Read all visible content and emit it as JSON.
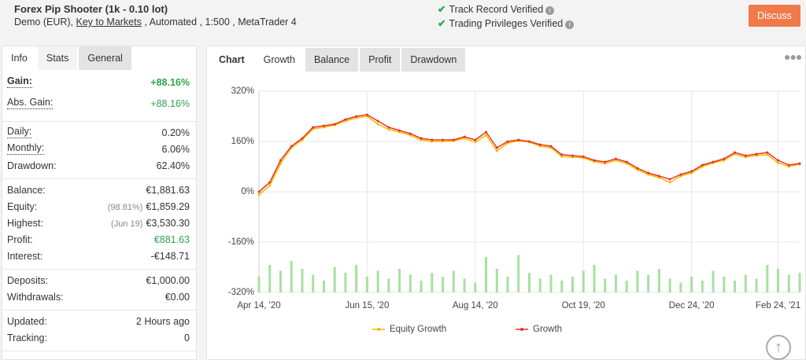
{
  "header": {
    "title": "Forex Pip Shooter (1k - 0.10 lot)",
    "account_type": "Demo (EUR),",
    "broker": "Key to Markets",
    "details": ", Automated , 1:500 , MetaTrader 4",
    "verifications": [
      "Track Record Verified",
      "Trading Privileges Verified"
    ],
    "button": "Discuss"
  },
  "stats_panel": {
    "tabs": [
      "Info",
      "Stats",
      "General"
    ],
    "groups": [
      [
        {
          "label": "Gain:",
          "value": "+88.16%",
          "color": "#2ea44f"
        },
        {
          "label": "Abs. Gain:",
          "value": "+88.16%",
          "color": "#2ea44f"
        }
      ],
      [
        {
          "label": "Daily:",
          "value": "0.20%"
        },
        {
          "label": "Monthly:",
          "value": "6.06%"
        },
        {
          "label": "Drawdown:",
          "value": "62.40%"
        }
      ],
      [
        {
          "label": "Balance:",
          "value": "€1,881.63"
        },
        {
          "label": "Equity:",
          "note": "(98.81%)",
          "value": "€1,859.29"
        },
        {
          "label": "Highest:",
          "note": "(Jun 19)",
          "value": "€3,530.30"
        },
        {
          "label": "Profit:",
          "value": "€881.63",
          "color": "#2ea44f"
        },
        {
          "label": "Interest:",
          "value": "-€148.71"
        }
      ],
      [
        {
          "label": "Deposits:",
          "value": "€1,000.00"
        },
        {
          "label": "Withdrawals:",
          "value": "€0.00"
        }
      ],
      [
        {
          "label": "Updated:",
          "value": "2 Hours ago"
        },
        {
          "label": "Tracking:",
          "value": "0"
        }
      ]
    ]
  },
  "chart_panel": {
    "label": "Chart",
    "tabs": [
      "Growth",
      "Balance",
      "Profit",
      "Drawdown"
    ]
  },
  "chart_data": {
    "type": "line",
    "categories": [
      "Apr 14, '20",
      null,
      null,
      null,
      null,
      null,
      null,
      null,
      null,
      null,
      "Jun 15, '20",
      null,
      null,
      null,
      null,
      null,
      null,
      null,
      null,
      null,
      "Aug 14, '20",
      null,
      null,
      null,
      null,
      null,
      null,
      null,
      null,
      null,
      "Oct 19, '20",
      null,
      null,
      null,
      null,
      null,
      null,
      null,
      null,
      null,
      "Dec 24, '20",
      null,
      null,
      null,
      null,
      null,
      null,
      null,
      "Feb 24, '21",
      null,
      null
    ],
    "series": [
      {
        "name": "Equity Growth",
        "color": "#f5b800",
        "values": [
          -10,
          20,
          90,
          140,
          165,
          200,
          205,
          212,
          225,
          235,
          240,
          215,
          198,
          190,
          180,
          165,
          160,
          160,
          162,
          170,
          158,
          180,
          130,
          155,
          162,
          158,
          145,
          140,
          112,
          110,
          108,
          96,
          90,
          100,
          90,
          70,
          55,
          45,
          30,
          50,
          60,
          80,
          92,
          100,
          120,
          110,
          115,
          118,
          92,
          80,
          88
        ]
      },
      {
        "name": "Growth",
        "color": "#e8321e",
        "values": [
          0,
          30,
          100,
          145,
          170,
          205,
          210,
          215,
          230,
          240,
          245,
          225,
          205,
          195,
          185,
          170,
          165,
          165,
          165,
          175,
          165,
          190,
          140,
          160,
          165,
          160,
          150,
          145,
          118,
          115,
          112,
          100,
          95,
          105,
          95,
          75,
          60,
          50,
          40,
          55,
          65,
          85,
          95,
          105,
          125,
          115,
          120,
          125,
          100,
          85,
          90
        ]
      }
    ],
    "volume": {
      "color": "#a8e0a0",
      "ylim": [
        0,
        100
      ],
      "values": [
        40,
        70,
        55,
        80,
        60,
        45,
        30,
        65,
        50,
        70,
        40,
        55,
        35,
        60,
        45,
        30,
        50,
        40,
        55,
        35,
        25,
        90,
        60,
        40,
        95,
        50,
        35,
        45,
        30,
        40,
        55,
        70,
        35,
        45,
        30,
        55,
        45,
        60,
        35,
        25,
        40,
        30,
        55,
        40,
        30,
        45,
        35,
        70,
        60,
        45,
        50
      ]
    },
    "ylim": [
      -320,
      320
    ],
    "yticks": [
      {
        "value": 320,
        "label": "320%"
      },
      {
        "value": 160,
        "label": "160%"
      },
      {
        "value": 0,
        "label": "0%"
      },
      {
        "value": -160,
        "label": "-160%"
      },
      {
        "value": -320,
        "label": "-320%"
      }
    ],
    "grid": true
  }
}
